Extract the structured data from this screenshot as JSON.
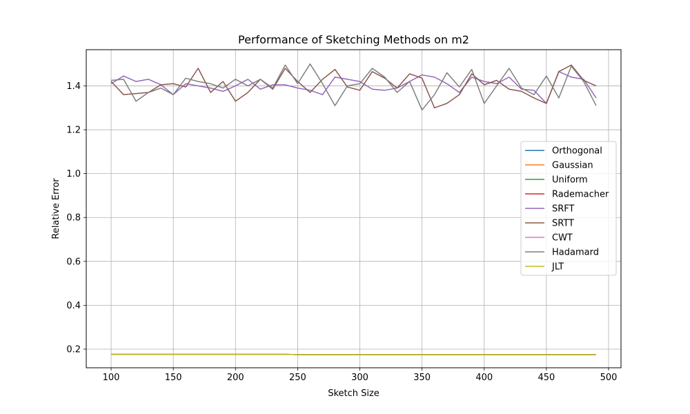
{
  "chart_data": {
    "type": "line",
    "title": "Performance of Sketching Methods on m2",
    "xlabel": "Sketch Size",
    "ylabel": "Relative Error",
    "xlim": [
      80,
      510
    ],
    "ylim": [
      0.115,
      1.565
    ],
    "xticks": [
      100,
      150,
      200,
      250,
      300,
      350,
      400,
      450,
      500
    ],
    "yticks": [
      0.2,
      0.4,
      0.6,
      0.8,
      1.0,
      1.2,
      1.4
    ],
    "xtick_labels": [
      "100",
      "150",
      "200",
      "250",
      "300",
      "350",
      "400",
      "450",
      "500"
    ],
    "ytick_labels": [
      "0.2",
      "0.4",
      "0.6",
      "0.8",
      "1.0",
      "1.2",
      "1.4"
    ],
    "grid": true,
    "legend_position": "right",
    "x": [
      100,
      110,
      120,
      130,
      140,
      150,
      160,
      170,
      180,
      190,
      200,
      210,
      220,
      230,
      240,
      250,
      260,
      270,
      280,
      290,
      300,
      310,
      320,
      330,
      340,
      350,
      360,
      370,
      380,
      390,
      400,
      410,
      420,
      430,
      440,
      450,
      460,
      470,
      480,
      490
    ],
    "series": [
      {
        "name": "Orthogonal",
        "color": "#1f77b4",
        "values": [
          0.176,
          0.176,
          0.176,
          0.176,
          0.176,
          0.176,
          0.176,
          0.176,
          0.176,
          0.176,
          0.176,
          0.176,
          0.176,
          0.176,
          0.176,
          0.175,
          0.175,
          0.175,
          0.175,
          0.175,
          0.175,
          0.175,
          0.175,
          0.175,
          0.175,
          0.175,
          0.175,
          0.175,
          0.175,
          0.175,
          0.175,
          0.175,
          0.175,
          0.175,
          0.175,
          0.175,
          0.175,
          0.175,
          0.175,
          0.175
        ]
      },
      {
        "name": "Gaussian",
        "color": "#ff7f0e",
        "values": [
          0.176,
          0.176,
          0.176,
          0.176,
          0.176,
          0.176,
          0.176,
          0.176,
          0.176,
          0.176,
          0.176,
          0.176,
          0.176,
          0.176,
          0.176,
          0.175,
          0.175,
          0.175,
          0.175,
          0.175,
          0.175,
          0.175,
          0.175,
          0.175,
          0.175,
          0.175,
          0.175,
          0.175,
          0.175,
          0.175,
          0.175,
          0.175,
          0.175,
          0.175,
          0.175,
          0.175,
          0.175,
          0.175,
          0.175,
          0.175
        ]
      },
      {
        "name": "Uniform",
        "color": "#2ca02c",
        "values": [
          0.176,
          0.176,
          0.176,
          0.176,
          0.176,
          0.176,
          0.176,
          0.176,
          0.176,
          0.176,
          0.176,
          0.176,
          0.176,
          0.176,
          0.176,
          0.175,
          0.175,
          0.175,
          0.175,
          0.175,
          0.175,
          0.175,
          0.175,
          0.175,
          0.175,
          0.175,
          0.175,
          0.175,
          0.175,
          0.175,
          0.175,
          0.175,
          0.175,
          0.175,
          0.175,
          0.175,
          0.175,
          0.175,
          0.175,
          0.175
        ]
      },
      {
        "name": "Rademacher",
        "color": "#d62728",
        "values": [
          0.176,
          0.176,
          0.176,
          0.176,
          0.176,
          0.176,
          0.176,
          0.176,
          0.176,
          0.176,
          0.176,
          0.176,
          0.176,
          0.176,
          0.176,
          0.175,
          0.175,
          0.175,
          0.175,
          0.175,
          0.175,
          0.175,
          0.175,
          0.175,
          0.175,
          0.175,
          0.175,
          0.175,
          0.175,
          0.175,
          0.175,
          0.175,
          0.175,
          0.175,
          0.175,
          0.175,
          0.175,
          0.175,
          0.175,
          0.175
        ]
      },
      {
        "name": "SRFT",
        "color": "#9467bd",
        "values": [
          1.41,
          1.445,
          1.42,
          1.43,
          1.405,
          1.36,
          1.41,
          1.4,
          1.39,
          1.375,
          1.4,
          1.43,
          1.385,
          1.405,
          1.405,
          1.39,
          1.38,
          1.36,
          1.44,
          1.43,
          1.42,
          1.385,
          1.38,
          1.39,
          1.42,
          1.45,
          1.44,
          1.41,
          1.37,
          1.44,
          1.42,
          1.41,
          1.44,
          1.385,
          1.38,
          1.32,
          1.465,
          1.44,
          1.43,
          1.345
        ]
      },
      {
        "name": "SRTT",
        "color": "#8c564b",
        "values": [
          1.42,
          1.36,
          1.365,
          1.37,
          1.405,
          1.41,
          1.395,
          1.48,
          1.37,
          1.42,
          1.33,
          1.37,
          1.43,
          1.385,
          1.48,
          1.42,
          1.37,
          1.43,
          1.475,
          1.395,
          1.38,
          1.465,
          1.435,
          1.39,
          1.455,
          1.435,
          1.3,
          1.32,
          1.36,
          1.455,
          1.405,
          1.425,
          1.385,
          1.375,
          1.345,
          1.32,
          1.465,
          1.495,
          1.425,
          1.4
        ]
      },
      {
        "name": "CWT",
        "color": "#e377c2",
        "values": [
          0.176,
          0.176,
          0.176,
          0.176,
          0.176,
          0.176,
          0.176,
          0.176,
          0.176,
          0.176,
          0.176,
          0.176,
          0.176,
          0.176,
          0.176,
          0.175,
          0.175,
          0.175,
          0.175,
          0.175,
          0.175,
          0.175,
          0.175,
          0.175,
          0.175,
          0.175,
          0.175,
          0.175,
          0.175,
          0.175,
          0.175,
          0.175,
          0.175,
          0.175,
          0.175,
          0.175,
          0.175,
          0.175,
          0.175,
          0.175
        ]
      },
      {
        "name": "Hadamard",
        "color": "#7f7f7f",
        "values": [
          1.425,
          1.43,
          1.33,
          1.37,
          1.39,
          1.36,
          1.435,
          1.42,
          1.41,
          1.39,
          1.43,
          1.4,
          1.43,
          1.39,
          1.495,
          1.41,
          1.5,
          1.41,
          1.31,
          1.4,
          1.41,
          1.48,
          1.44,
          1.37,
          1.42,
          1.29,
          1.36,
          1.46,
          1.395,
          1.475,
          1.32,
          1.4,
          1.48,
          1.39,
          1.36,
          1.445,
          1.345,
          1.49,
          1.42,
          1.31
        ]
      },
      {
        "name": "JLT",
        "color": "#bcbd22",
        "values": [
          0.176,
          0.176,
          0.176,
          0.176,
          0.176,
          0.176,
          0.176,
          0.176,
          0.176,
          0.176,
          0.176,
          0.176,
          0.176,
          0.176,
          0.176,
          0.175,
          0.175,
          0.175,
          0.175,
          0.175,
          0.175,
          0.175,
          0.175,
          0.175,
          0.175,
          0.175,
          0.175,
          0.175,
          0.175,
          0.175,
          0.175,
          0.175,
          0.175,
          0.175,
          0.175,
          0.175,
          0.175,
          0.175,
          0.175,
          0.175
        ]
      }
    ]
  }
}
